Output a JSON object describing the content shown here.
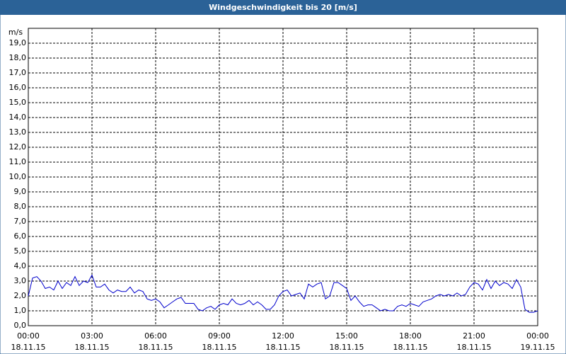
{
  "chart_data": {
    "type": "line",
    "title": "Windgeschwindigkeit bis 20 [m/s]",
    "ylabel": "m/s",
    "x": [
      0,
      0.2,
      0.4,
      0.6,
      0.8,
      1,
      1.2,
      1.4,
      1.6,
      1.8,
      2,
      2.2,
      2.4,
      2.6,
      2.8,
      3,
      3.2,
      3.4,
      3.6,
      3.8,
      4,
      4.2,
      4.4,
      4.6,
      4.8,
      5,
      5.2,
      5.4,
      5.6,
      5.8,
      6,
      6.2,
      6.4,
      6.6,
      6.8,
      7,
      7.2,
      7.4,
      7.6,
      7.8,
      8,
      8.2,
      8.4,
      8.6,
      8.8,
      9,
      9.2,
      9.4,
      9.6,
      9.8,
      10,
      10.2,
      10.4,
      10.6,
      10.8,
      11,
      11.2,
      11.4,
      11.6,
      11.8,
      12,
      12.2,
      12.4,
      12.6,
      12.8,
      13,
      13.2,
      13.4,
      13.6,
      13.8,
      14,
      14.2,
      14.4,
      14.6,
      14.8,
      15,
      15.2,
      15.4,
      15.6,
      15.8,
      16,
      16.2,
      16.4,
      16.6,
      16.8,
      17,
      17.2,
      17.4,
      17.6,
      17.8,
      18,
      18.2,
      18.4,
      18.6,
      18.8,
      19,
      19.2,
      19.4,
      19.6,
      19.8,
      20,
      20.2,
      20.4,
      20.6,
      20.8,
      21,
      21.2,
      21.4,
      21.6,
      21.8,
      22,
      22.2,
      22.4,
      22.6,
      22.8,
      23,
      23.2,
      23.4,
      23.6,
      23.8,
      24
    ],
    "series": [
      {
        "color": "#0000cc",
        "values": [
          2.0,
          3.2,
          3.3,
          3.0,
          2.5,
          2.6,
          2.4,
          3.0,
          2.5,
          2.9,
          2.7,
          3.3,
          2.7,
          3.0,
          2.9,
          3.4,
          2.6,
          2.6,
          2.8,
          2.4,
          2.2,
          2.4,
          2.3,
          2.3,
          2.6,
          2.2,
          2.4,
          2.3,
          1.8,
          1.7,
          1.8,
          1.6,
          1.2,
          1.4,
          1.6,
          1.8,
          1.9,
          1.5,
          1.5,
          1.5,
          1.1,
          1.0,
          1.2,
          1.3,
          1.1,
          1.4,
          1.5,
          1.4,
          1.8,
          1.5,
          1.4,
          1.5,
          1.7,
          1.4,
          1.6,
          1.4,
          1.1,
          1.1,
          1.4,
          2.0,
          2.3,
          2.4,
          2.0,
          2.1,
          2.2,
          1.8,
          2.8,
          2.6,
          2.8,
          2.9,
          1.8,
          2.0,
          2.9,
          2.9,
          2.7,
          2.5,
          1.7,
          2.0,
          1.6,
          1.3,
          1.4,
          1.4,
          1.2,
          1.0,
          1.1,
          1.0,
          1.0,
          1.3,
          1.4,
          1.3,
          1.5,
          1.4,
          1.3,
          1.6,
          1.7,
          1.8,
          2.0,
          2.1,
          2.0,
          2.1,
          2.0,
          2.2,
          2.0,
          2.1,
          2.6,
          2.9,
          2.8,
          2.4,
          3.1,
          2.5,
          3.0,
          2.7,
          2.9,
          2.8,
          2.5,
          3.1,
          2.6,
          1.1,
          0.9,
          0.9,
          1.0
        ]
      }
    ],
    "xlim": [
      0,
      24
    ],
    "xticks": [
      {
        "value": 0,
        "label": "00:00"
      },
      {
        "value": 3,
        "label": "03:00"
      },
      {
        "value": 6,
        "label": "06:00"
      },
      {
        "value": 9,
        "label": "09:00"
      },
      {
        "value": 12,
        "label": "12:00"
      },
      {
        "value": 15,
        "label": "15:00"
      },
      {
        "value": 18,
        "label": "18:00"
      },
      {
        "value": 21,
        "label": "21:00"
      },
      {
        "value": 24,
        "label": "00:00"
      }
    ],
    "xtick_dates": [
      "18.11.15",
      "18.11.15",
      "18.11.15",
      "18.11.15",
      "18.11.15",
      "18.11.15",
      "18.11.15",
      "18.11.15",
      "19.11.15"
    ],
    "ylim": [
      0,
      20
    ],
    "yticks": [
      {
        "value": 0,
        "label": "0,0"
      },
      {
        "value": 1,
        "label": "1,0"
      },
      {
        "value": 2,
        "label": "2,0"
      },
      {
        "value": 3,
        "label": "3,0"
      },
      {
        "value": 4,
        "label": "4,0"
      },
      {
        "value": 5,
        "label": "5,0"
      },
      {
        "value": 6,
        "label": "6,0"
      },
      {
        "value": 7,
        "label": "7,0"
      },
      {
        "value": 8,
        "label": "8,0"
      },
      {
        "value": 9,
        "label": "9,0"
      },
      {
        "value": 10,
        "label": "10,0"
      },
      {
        "value": 11,
        "label": "11,0"
      },
      {
        "value": 12,
        "label": "12,0"
      },
      {
        "value": 13,
        "label": "13,0"
      },
      {
        "value": 14,
        "label": "14,0"
      },
      {
        "value": 15,
        "label": "15,0"
      },
      {
        "value": 16,
        "label": "16,0"
      },
      {
        "value": 17,
        "label": "17,0"
      },
      {
        "value": 18,
        "label": "18,0"
      },
      {
        "value": 19,
        "label": "19,0"
      }
    ],
    "grid": true
  }
}
